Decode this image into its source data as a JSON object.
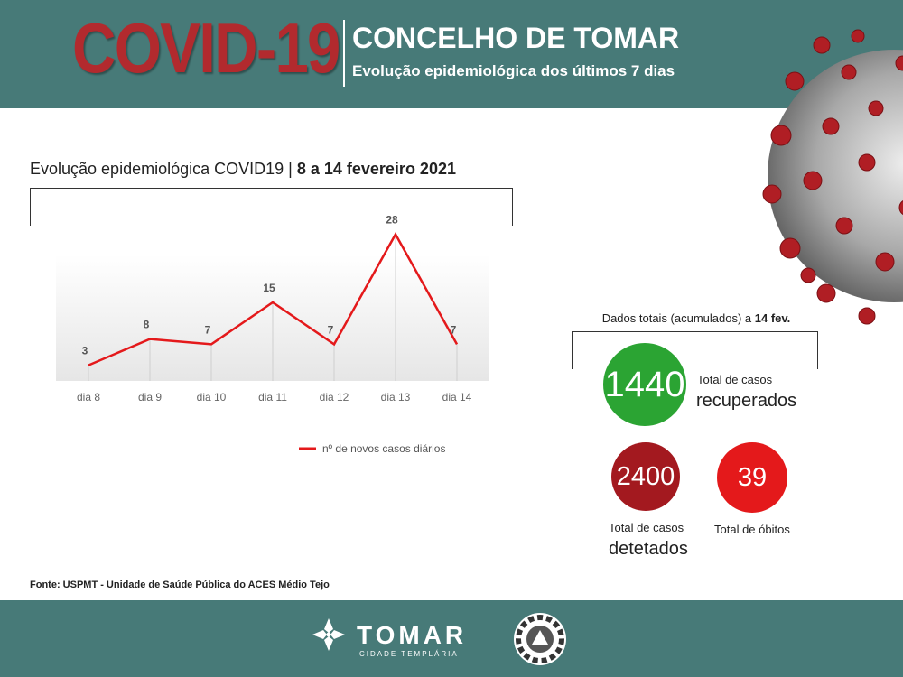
{
  "header": {
    "big_title": "COVID-19",
    "main_title": "CONCELHO DE TOMAR",
    "subtitle": "Evolução epidemiológica dos últimos 7 dias"
  },
  "chart_title": {
    "prefix": "Evolução epidemiológica COVID19 | ",
    "bold": "8 a 14 fevereiro 2021"
  },
  "chart_data": {
    "type": "line",
    "title": "Evolução epidemiológica COVID19 | 8 a 14 fevereiro 2021",
    "categories": [
      "dia 8",
      "dia 9",
      "dia 10",
      "dia 11",
      "dia 12",
      "dia 13",
      "dia 14"
    ],
    "series": [
      {
        "name": "nº de novos casos diários",
        "values": [
          3,
          8,
          7,
          15,
          7,
          28,
          7
        ]
      }
    ],
    "ylim": [
      0,
      30
    ],
    "grid": false,
    "legend": "bottom",
    "color": "#e4191b"
  },
  "totals": {
    "title_prefix": "Dados totais (acumulados) a ",
    "title_bold": "14 fev.",
    "recovered_value": "1440",
    "recovered_label_small": "Total de casos",
    "recovered_label_big": "recuperados",
    "detected_value": "2400",
    "detected_label_small": "Total de casos",
    "detected_label_big": "detetados",
    "deaths_value": "39",
    "deaths_label": "Total de óbitos",
    "colors": {
      "recovered": "#2ba433",
      "detected": "#a3191f",
      "deaths": "#e4191b"
    }
  },
  "source": "Fonte: USPMT - Unidade de Saúde Pública do ACES Médio Tejo",
  "footer": {
    "brand": "TOMAR",
    "tagline": "CIDADE TEMPLÁRIA"
  },
  "icons": [
    "virus-illustration",
    "templar-cross-icon",
    "civil-protection-badge-icon"
  ]
}
